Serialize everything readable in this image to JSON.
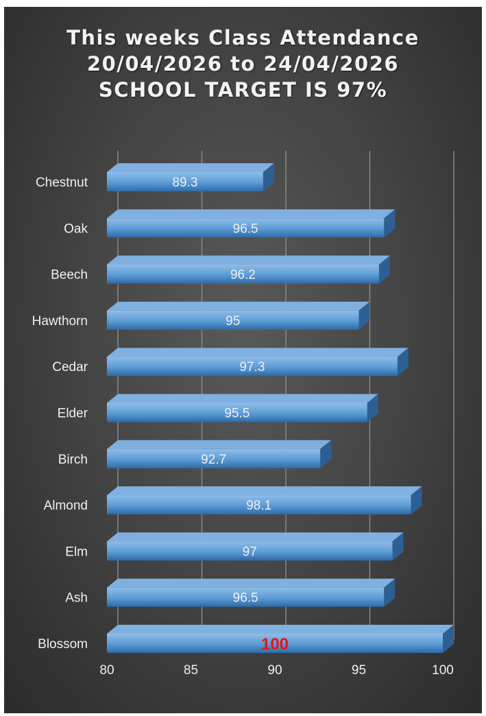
{
  "chart_data": {
    "type": "bar",
    "orientation": "horizontal",
    "title_lines": [
      "This weeks Class Attendance",
      "20/04/2026 to 24/04/2026",
      "SCHOOL TARGET IS 97%"
    ],
    "categories": [
      "Chestnut",
      "Oak",
      "Beech",
      "Hawthorn",
      "Cedar",
      "Elder",
      "Birch",
      "Almond",
      "Elm",
      "Ash",
      "Blossom"
    ],
    "values": [
      89.3,
      96.5,
      96.2,
      95,
      97.3,
      95.5,
      92.7,
      98.1,
      97,
      96.5,
      100
    ],
    "value_labels": [
      "89.3",
      "96.5",
      "96.2",
      "95",
      "97.3",
      "95.5",
      "92.7",
      "98.1",
      "97",
      "96.5",
      "100"
    ],
    "highlight_category": "Blossom",
    "xlim": [
      80,
      100
    ],
    "xticks": [
      "80",
      "85",
      "90",
      "95",
      "100"
    ],
    "grid": true,
    "legend": "none",
    "style": "3d",
    "colors": {
      "bar": "#5b9bd5",
      "bar_dark": "#2e6aa7",
      "bar_top": "#8fbde8",
      "highlight_label": "#ee1111",
      "background": "#404040",
      "gridline": "#8c8c8c",
      "text": "#f0f0f0"
    }
  }
}
